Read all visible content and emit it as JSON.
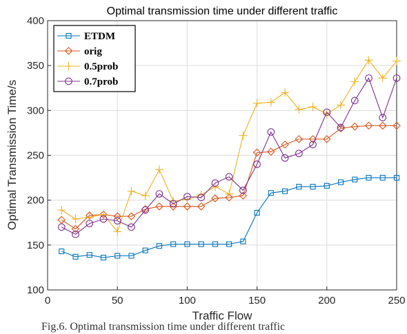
{
  "caption": "Fig.6. Optimal transmission time under different traffic",
  "chart_data": {
    "type": "line",
    "title": "Optimal transmission time under different traffic",
    "xlabel": "Traffic Flow",
    "ylabel": "Optimal Transmission Time/s",
    "xlim": [
      0,
      250
    ],
    "ylim": [
      100,
      400
    ],
    "xticks": [
      0,
      50,
      100,
      150,
      200,
      250
    ],
    "yticks": [
      100,
      150,
      200,
      250,
      300,
      350,
      400
    ],
    "grid": true,
    "legend_position": "top-left",
    "x": [
      10,
      20,
      30,
      40,
      50,
      60,
      70,
      80,
      90,
      100,
      110,
      120,
      130,
      140,
      150,
      160,
      170,
      180,
      190,
      200,
      210,
      220,
      230,
      240,
      250
    ],
    "series": [
      {
        "name": "ETDM",
        "color": "#0072BD",
        "marker": "square",
        "values": [
          143,
          137,
          139,
          136,
          138,
          138,
          144,
          149,
          151,
          151,
          151,
          151,
          151,
          154,
          186,
          208,
          210,
          215,
          215,
          216,
          220,
          223,
          225,
          225,
          225
        ]
      },
      {
        "name": "orig",
        "color": "#D95319",
        "marker": "diamond",
        "values": [
          178,
          168,
          183,
          184,
          182,
          182,
          190,
          193,
          193,
          193,
          193,
          202,
          203,
          205,
          253,
          254,
          262,
          268,
          268,
          268,
          280,
          282,
          283,
          283,
          283
        ]
      },
      {
        "name": "0.5prob",
        "color": "#EDB120",
        "marker": "plus",
        "values": [
          189,
          179,
          181,
          184,
          165,
          210,
          205,
          234,
          199,
          201,
          206,
          215,
          207,
          272,
          308,
          309,
          320,
          301,
          304,
          296,
          306,
          332,
          356,
          336,
          355
        ]
      },
      {
        "name": "0.7prob",
        "color": "#7E2F8E",
        "marker": "circle",
        "values": [
          170,
          162,
          174,
          179,
          177,
          170,
          189,
          207,
          196,
          204,
          203,
          219,
          226,
          211,
          240,
          276,
          247,
          252,
          262,
          298,
          281,
          311,
          336,
          292,
          336
        ]
      }
    ]
  }
}
